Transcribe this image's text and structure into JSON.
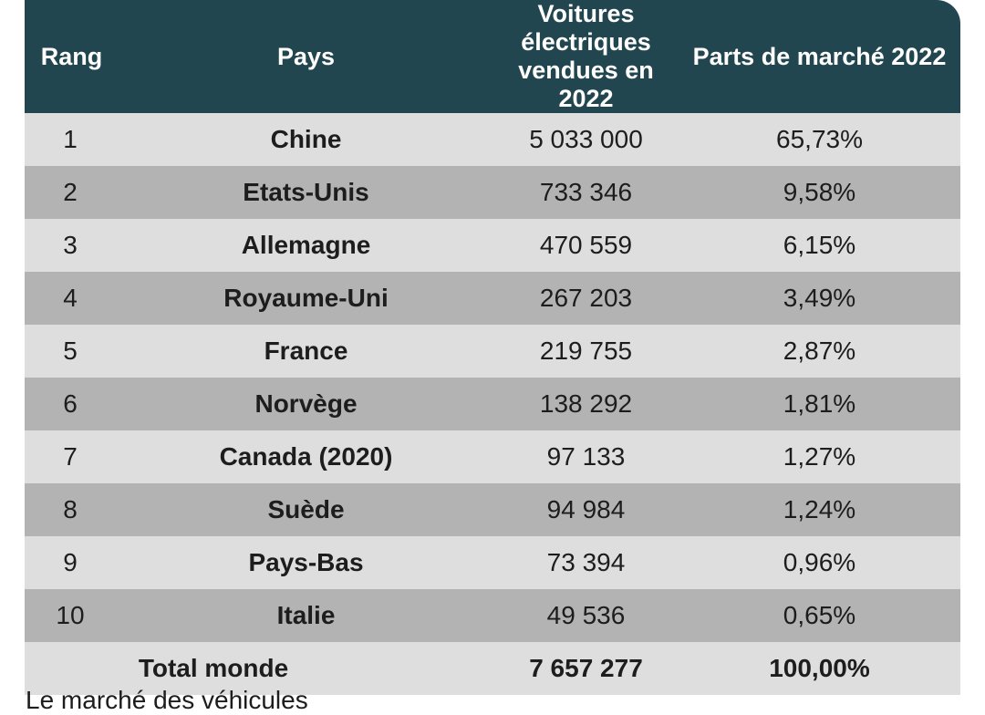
{
  "chart_data": {
    "type": "table",
    "columns": [
      "Rang",
      "Pays",
      "Voitures électriques\nvendues en 2022",
      "Parts de marché 2022"
    ],
    "rows": [
      {
        "rank": "1",
        "country": "Chine",
        "sales": "5 033 000",
        "share": "65,73%"
      },
      {
        "rank": "2",
        "country": "Etats-Unis",
        "sales": "733 346",
        "share": "9,58%"
      },
      {
        "rank": "3",
        "country": "Allemagne",
        "sales": "470 559",
        "share": "6,15%"
      },
      {
        "rank": "4",
        "country": "Royaume-Uni",
        "sales": "267 203",
        "share": "3,49%"
      },
      {
        "rank": "5",
        "country": "France",
        "sales": "219 755",
        "share": "2,87%"
      },
      {
        "rank": "6",
        "country": "Norvège",
        "sales": "138 292",
        "share": "1,81%"
      },
      {
        "rank": "7",
        "country": "Canada (2020)",
        "sales": "97 133",
        "share": "1,27%"
      },
      {
        "rank": "8",
        "country": "Suède",
        "sales": "94 984",
        "share": "1,24%"
      },
      {
        "rank": "9",
        "country": "Pays-Bas",
        "sales": "73 394",
        "share": "0,96%"
      },
      {
        "rank": "10",
        "country": "Italie",
        "sales": "49 536",
        "share": "0,65%"
      }
    ],
    "total": {
      "label": "Total monde",
      "sales": "7 657 277",
      "share": "100,00%"
    }
  },
  "colors": {
    "header_bg": "#22464f",
    "row_light": "#dedede",
    "row_dark": "#b3b3b3"
  },
  "footnote": "Le marché des véhicules"
}
